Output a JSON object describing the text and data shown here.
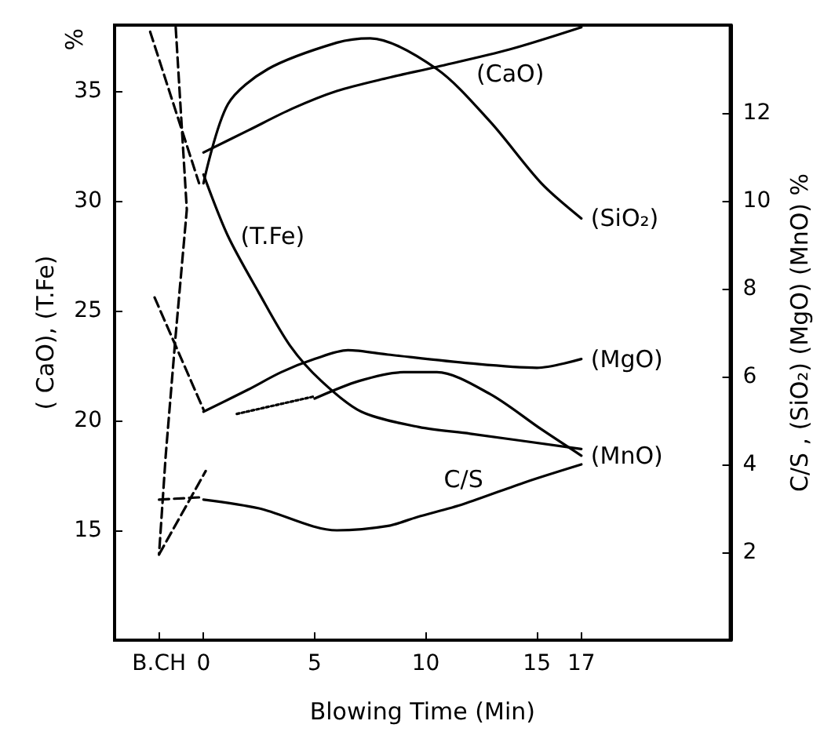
{
  "chart_data": {
    "type": "line",
    "xlabel": "Blowing Time (Min)",
    "ylabel": "( CaO), (T.Fe)",
    "y2label": "C/S , (SiO₂) (MgO) (MnO) %",
    "annotations": [
      "%"
    ],
    "xlim": [
      -4,
      23.7
    ],
    "xticks": [
      {
        "value": -2,
        "label": "B.CH"
      },
      0,
      5,
      10,
      15,
      17
    ],
    "ylim": [
      10,
      38
    ],
    "yticks": [
      15,
      20,
      25,
      30,
      35
    ],
    "y2lim": [
      0,
      14
    ],
    "y2ticks": [
      2,
      4,
      6,
      8,
      10,
      12
    ],
    "grid": false,
    "legend": false,
    "marker": "none",
    "series": [
      {
        "name": "(CaO)",
        "color": "#000000",
        "x": [
          0,
          2,
          4,
          6,
          8.3,
          10.5,
          13.8,
          17
        ],
        "values": [
          32.2,
          33.2,
          34.2,
          35,
          35.6,
          36.1,
          36.9,
          37.9
        ]
      },
      {
        "name": "(SiO₂)",
        "color": "#000000",
        "axis": "y2",
        "x": [
          0,
          1.1,
          2.9,
          6,
          7.5,
          10.5,
          12.9,
          15.2,
          17
        ],
        "values": [
          10.4,
          12.2,
          13,
          13.6,
          13.7,
          13,
          11.8,
          10.4,
          9.6
        ]
      },
      {
        "name": "(MgO)",
        "color": "#000000",
        "axis": "y2",
        "x": [
          0,
          2,
          3.5,
          5,
          6.5,
          8.3,
          12,
          15,
          17
        ],
        "values": [
          5.2,
          5.7,
          6.1,
          6.4,
          6.6,
          6.5,
          6.3,
          6.2,
          6.4
        ]
      },
      {
        "name": "(MnO)",
        "color": "#000000",
        "axis": "y2",
        "x": [
          5,
          7,
          9,
          10.5,
          12.9,
          15.2,
          17
        ],
        "values": [
          5.5,
          5.9,
          6.1,
          6.1,
          5.6,
          4.8,
          4.2
        ]
      },
      {
        "name": "(T.Fe)",
        "color": "#000000",
        "x": [
          0,
          1.1,
          2.5,
          3.9,
          5.3,
          7.1,
          9.7,
          12,
          17
        ],
        "values": [
          31.2,
          28.4,
          25.8,
          23.4,
          21.8,
          20.4,
          19.7,
          19.4,
          18.7
        ]
      },
      {
        "name": "C/S",
        "color": "#000000",
        "axis": "y2",
        "x": [
          0,
          2.5,
          6,
          8.3,
          9.6,
          11.7,
          14.5,
          17
        ],
        "values": [
          3.2,
          3,
          2.5,
          2.6,
          2.8,
          3.1,
          3.6,
          4
        ]
      },
      {
        "color": "#000000",
        "line_style": "dashed",
        "x": [
          -1.25,
          -0.75,
          -1.25,
          -1.7,
          -2
        ],
        "values": [
          37.9,
          29.6,
          23.9,
          18.4,
          13.9
        ]
      },
      {
        "color": "#000000",
        "line_style": "dashed",
        "x": [
          -2.4,
          -0.2
        ],
        "values": [
          37.7,
          30.8
        ]
      },
      {
        "color": "#000000",
        "line_style": "dashed",
        "x": [
          -2.2,
          0
        ],
        "values": [
          25.6,
          20.5
        ]
      },
      {
        "color": "#000000",
        "line_style": "dashed",
        "x": [
          -2,
          0.1
        ],
        "values": [
          13.9,
          17.7
        ]
      },
      {
        "color": "#000000",
        "line_style": "dashed",
        "x": [
          -2,
          -0.2
        ],
        "values": [
          16.4,
          16.5
        ]
      },
      {
        "color": "#000000",
        "line_style": "dotted",
        "x": [
          1.5,
          5
        ],
        "values": [
          20.3,
          21.1
        ]
      }
    ]
  }
}
